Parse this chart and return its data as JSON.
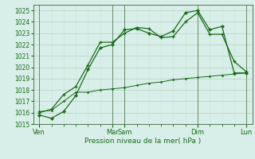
{
  "xlabel": "Pression niveau de la mer( hPa )",
  "ylim": [
    1015,
    1025.5
  ],
  "yticks": [
    1015,
    1016,
    1017,
    1018,
    1019,
    1020,
    1021,
    1022,
    1023,
    1024,
    1025
  ],
  "bg_color": "#d8eee8",
  "grid_color_major": "#b8d8c8",
  "grid_color_minor": "#c8e4d8",
  "line_color": "#1a6b1a",
  "line1": [
    1015.8,
    1015.5,
    1016.1,
    1017.5,
    1019.8,
    1021.7,
    1022.0,
    1023.3,
    1023.4,
    1023.0,
    1022.7,
    1023.2,
    1024.8,
    1025.0,
    1023.3,
    1023.6,
    1019.5,
    1019.5
  ],
  "line2": [
    1016.0,
    1016.3,
    1017.6,
    1018.3,
    1020.2,
    1022.2,
    1022.2,
    1023.0,
    1023.5,
    1023.4,
    1022.6,
    1022.7,
    1024.0,
    1024.8,
    1022.9,
    1022.9,
    1020.5,
    1019.6
  ],
  "line3": [
    1016.1,
    1016.2,
    1017.0,
    1017.8,
    1017.8,
    1018.0,
    1018.1,
    1018.2,
    1018.4,
    1018.6,
    1018.7,
    1018.9,
    1019.0,
    1019.1,
    1019.2,
    1019.3,
    1019.4,
    1019.5
  ],
  "xtick_positions": [
    0,
    6,
    7,
    13,
    17
  ],
  "xtick_labels": [
    "Ven",
    "Mar",
    "Sam",
    "Dim",
    "Lun"
  ],
  "vline_positions": [
    0,
    6,
    7,
    13,
    17
  ]
}
